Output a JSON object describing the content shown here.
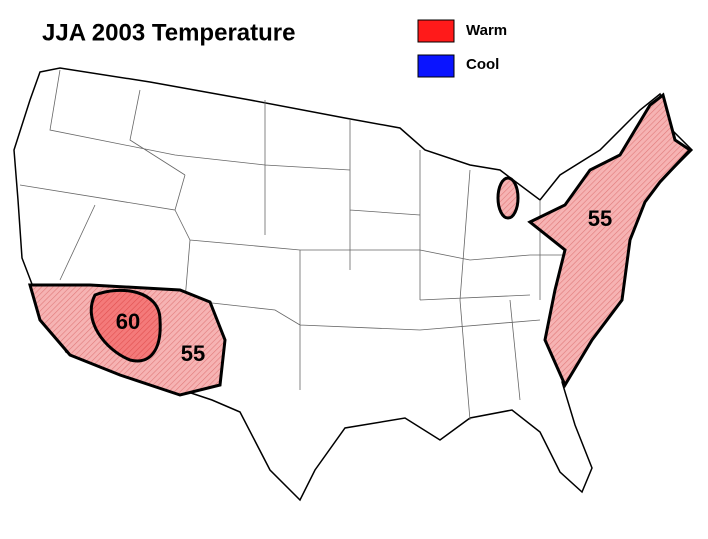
{
  "header": {
    "title": "JJA 2003 Temperature"
  },
  "legend": [
    {
      "label": "Warm",
      "color": "#ff1a1a"
    },
    {
      "label": "Cool",
      "color": "#0a14ff"
    }
  ],
  "regions": [
    {
      "label": "60"
    },
    {
      "label": "55"
    },
    {
      "label": "55"
    }
  ]
}
